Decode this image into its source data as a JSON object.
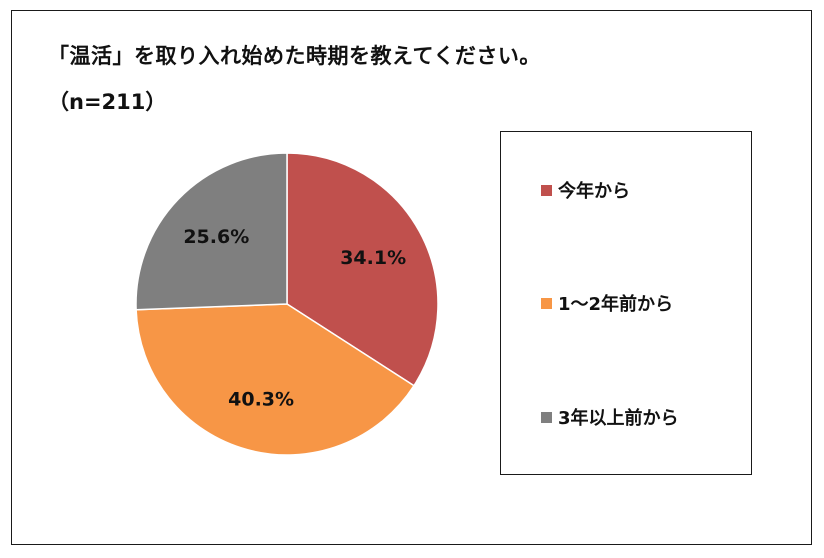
{
  "title": "「温活」を取り入れ始めた時期を教えてください。",
  "subtitle": "（n=211）",
  "chart_data": {
    "type": "pie",
    "categories": [
      "今年から",
      "1～2年前から",
      "3年以上前から"
    ],
    "values": [
      34.1,
      40.3,
      25.6
    ],
    "value_labels": [
      "34.1%",
      "40.3%",
      "25.6%"
    ],
    "colors": [
      "#c0504d",
      "#f79646",
      "#7f7f7f"
    ],
    "start": "12 o'clock, clockwise",
    "legend_position": "right"
  },
  "legend": {
    "items": [
      {
        "label": "今年から",
        "color": "#c0504d"
      },
      {
        "label": "1～2年前から",
        "color": "#f79646"
      },
      {
        "label": "3年以上前から",
        "color": "#7f7f7f"
      }
    ]
  }
}
